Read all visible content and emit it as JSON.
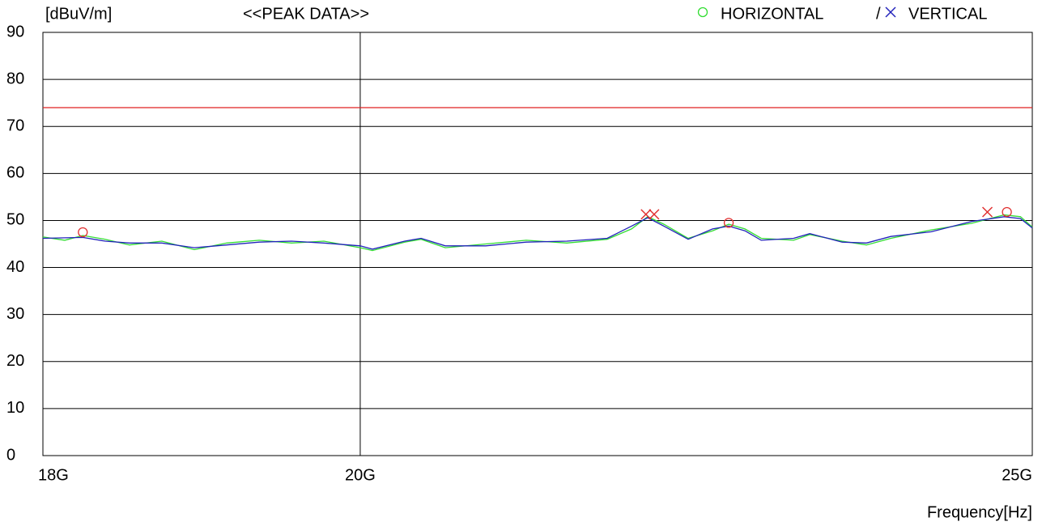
{
  "chart_data": {
    "type": "line",
    "y_unit_label": "[dBuV/m]",
    "title": "<<PEAK DATA>>",
    "xlabel": "Frequency[Hz]",
    "legend_separator": "/",
    "xscale": "log",
    "grid": true,
    "xlim": [
      18000000000,
      25000000000
    ],
    "xticks": [
      {
        "value": 18000000000,
        "label": "18G"
      },
      {
        "value": 20000000000,
        "label": "20G"
      },
      {
        "value": 25000000000,
        "label": "25G"
      }
    ],
    "ylim": [
      0,
      90
    ],
    "yticks": [
      0,
      10,
      20,
      30,
      40,
      50,
      60,
      70,
      80,
      90
    ],
    "limit_line": {
      "value": 74,
      "color": "#e02020"
    },
    "x": [
      18000000000,
      18131000000,
      18240000000,
      18376000000,
      18525000000,
      18725000000,
      18928000000,
      19133000000,
      19340000000,
      19549000000,
      19760000000,
      20000000000,
      20081000000,
      20298000000,
      20408000000,
      20573000000,
      20851000000,
      21133000000,
      21420000000,
      21709000000,
      21885000000,
      22003000000,
      22122000000,
      22301000000,
      22482000000,
      22603000000,
      22725000000,
      22848000000,
      23095000000,
      23220000000,
      23471000000,
      23661000000,
      23853000000,
      24176000000,
      24503000000,
      24768000000,
      24902000000,
      25000000000
    ],
    "series": [
      {
        "name": "HORIZONTAL",
        "color": "#33dd33",
        "marker": "circle",
        "values": [
          46.5,
          45.8,
          46.8,
          46,
          44.8,
          45.6,
          43.8,
          45.2,
          45.8,
          45.2,
          45.6,
          44.2,
          43.6,
          45.4,
          46,
          44.2,
          45,
          45.8,
          45.2,
          46,
          48.2,
          50.8,
          49.2,
          46.2,
          47.8,
          49.2,
          48.2,
          46.2,
          45.8,
          47,
          45.6,
          44.8,
          46.2,
          48,
          49.4,
          51.2,
          50.8,
          48.6
        ]
      },
      {
        "name": "VERTICAL",
        "color": "#2222bb",
        "marker": "cross",
        "values": [
          46.2,
          46.3,
          46.4,
          45.6,
          45.2,
          45.2,
          44.2,
          44.8,
          45.4,
          45.6,
          45.2,
          44.6,
          43.9,
          45.6,
          46.2,
          44.6,
          44.6,
          45.4,
          45.6,
          46.2,
          48.8,
          50.6,
          48.8,
          46,
          48.2,
          48.8,
          47.8,
          45.8,
          46.2,
          47.2,
          45.4,
          45.2,
          46.6,
          47.6,
          49.8,
          50.8,
          50.4,
          48.4
        ]
      }
    ],
    "peaks": [
      {
        "series": 0,
        "color": "#e03030",
        "x": [
          18240000000,
          22603000000,
          24790000000
        ],
        "values": [
          47.5,
          49.5,
          51.8
        ]
      },
      {
        "series": 1,
        "color": "#e03030",
        "x": [
          21990000000,
          22050000000,
          24630000000
        ],
        "values": [
          51.3,
          51.3,
          51.8
        ]
      }
    ]
  }
}
